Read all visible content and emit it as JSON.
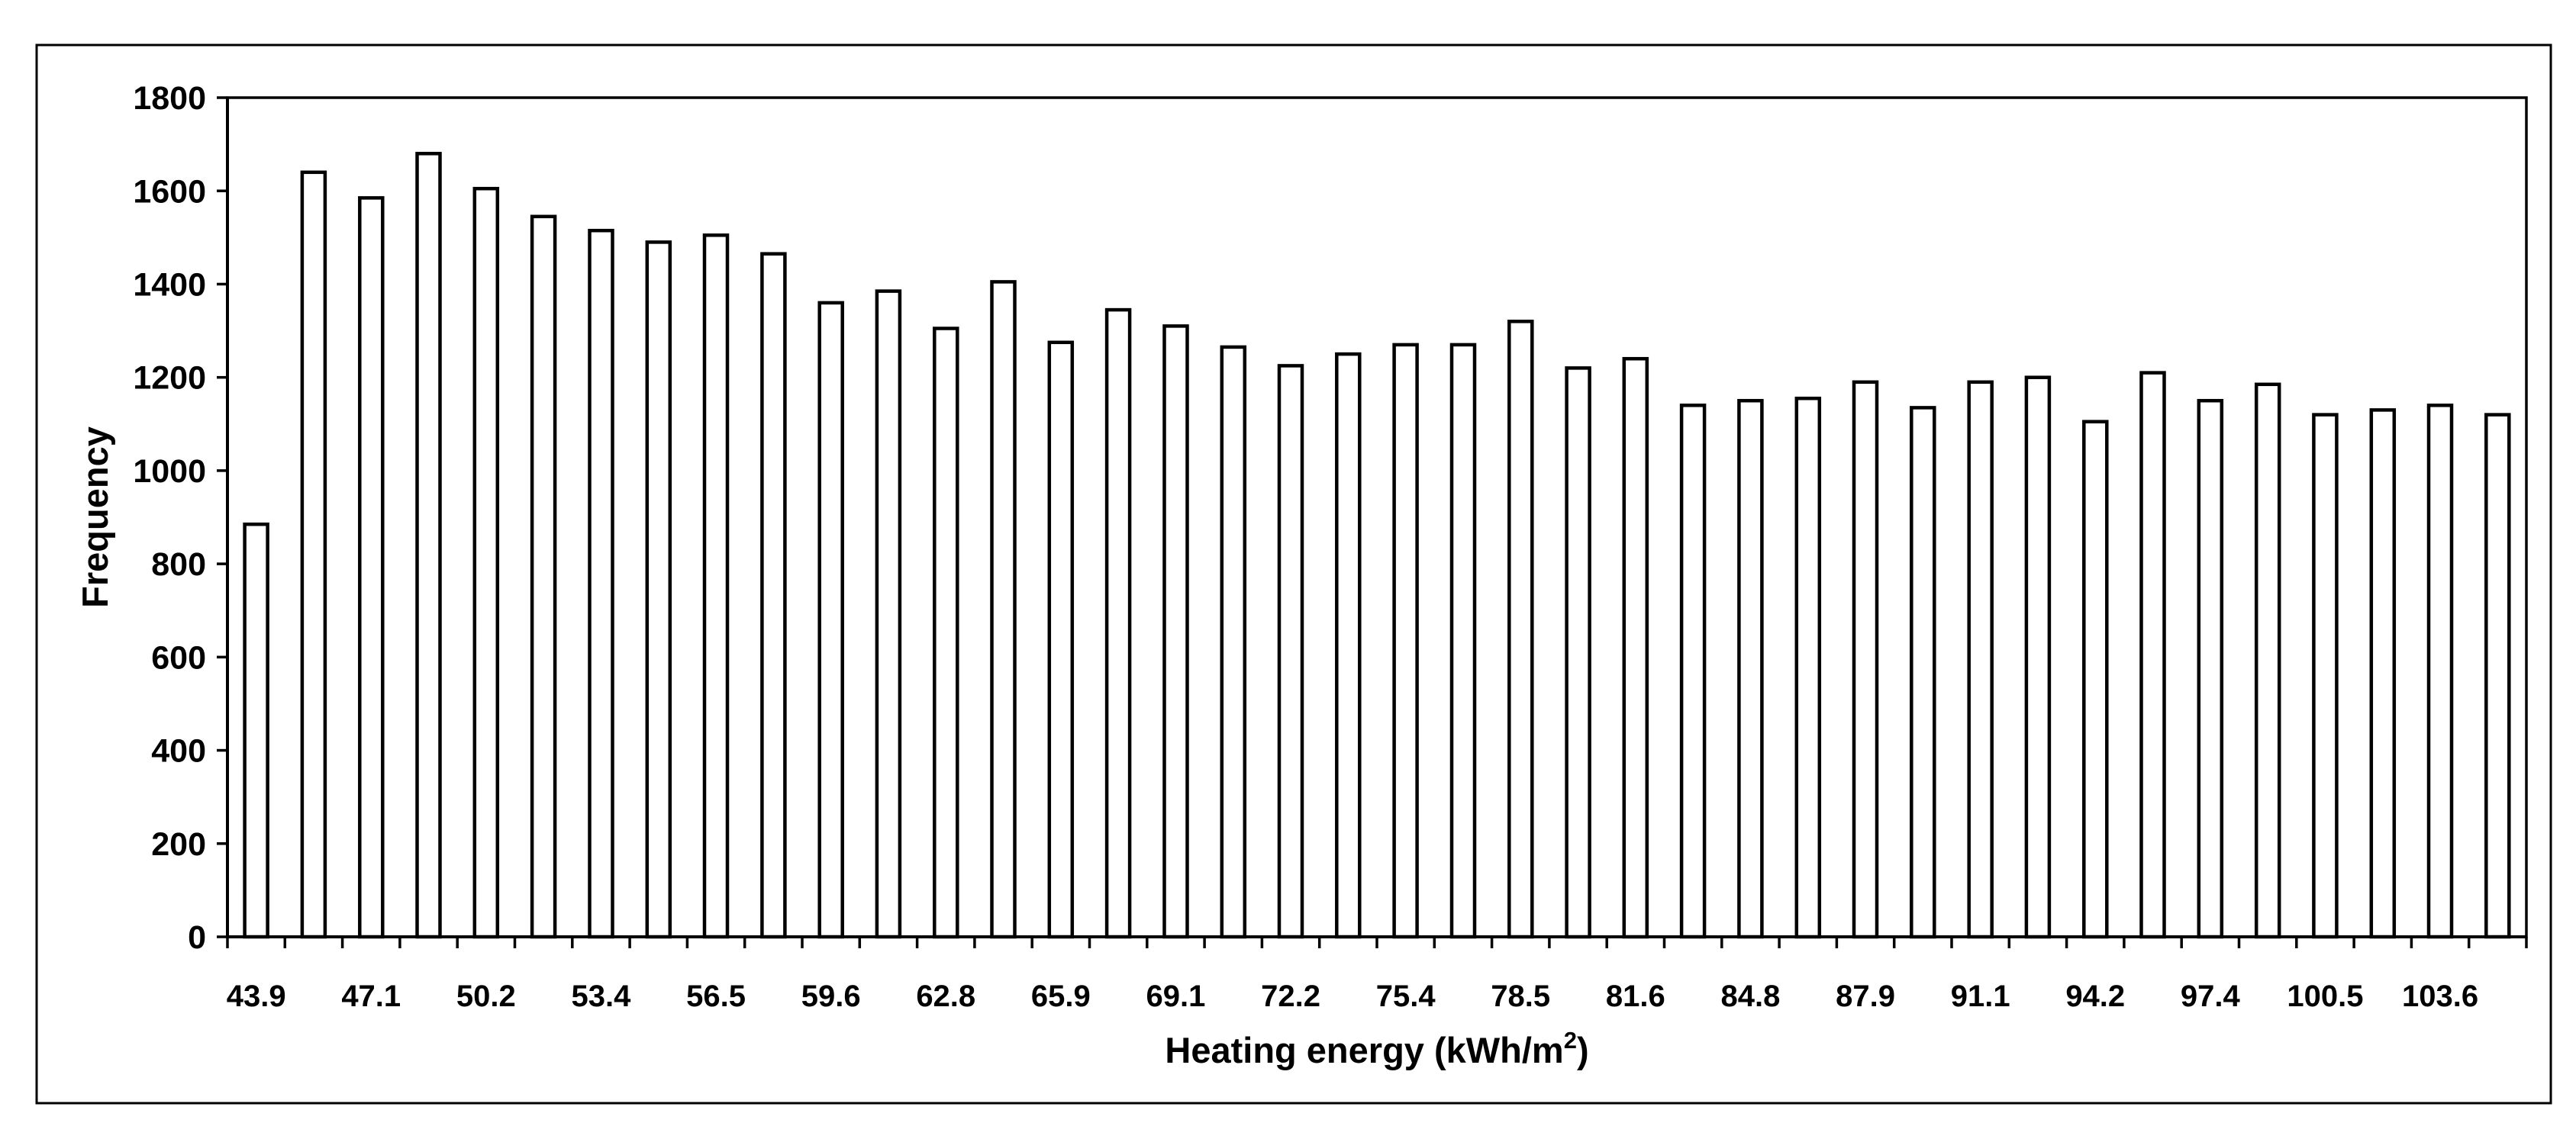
{
  "colors": {
    "background": "#ffffff",
    "foreground": "#000000",
    "bar_fill": "#ffffff",
    "bar_stroke": "#000000",
    "border": "#000000"
  },
  "chart_data": {
    "type": "bar",
    "subtype": "histogram",
    "title": "",
    "xlabel_main": "Heating energy (kWh/m",
    "xlabel_sup": "2",
    "xlabel_close": ")",
    "ylabel": "Frequency",
    "ylim": [
      0,
      1800
    ],
    "ytick_step": 200,
    "yticks": [
      0,
      200,
      400,
      600,
      800,
      1000,
      1200,
      1400,
      1600,
      1800
    ],
    "x_tick_labels": [
      "43.9",
      "47.1",
      "50.2",
      "53.4",
      "56.5",
      "59.6",
      "62.8",
      "65.9",
      "69.1",
      "72.2",
      "75.4",
      "78.5",
      "81.6",
      "84.8",
      "87.9",
      "91.1",
      "94.2",
      "97.4",
      "100.5",
      "103.6"
    ],
    "categories": [
      "43.9",
      "",
      "47.1",
      "",
      "50.2",
      "",
      "53.4",
      "",
      "56.5",
      "",
      "59.6",
      "",
      "62.8",
      "",
      "65.9",
      "",
      "69.1",
      "",
      "72.2",
      "",
      "75.4",
      "",
      "78.5",
      "",
      "81.6",
      "",
      "84.8",
      "",
      "87.9",
      "",
      "91.1",
      "",
      "94.2",
      "",
      "97.4",
      "",
      "100.5",
      "",
      "103.6",
      ""
    ],
    "values": [
      885,
      1640,
      1585,
      1680,
      1605,
      1545,
      1515,
      1490,
      1505,
      1465,
      1360,
      1385,
      1305,
      1405,
      1275,
      1345,
      1310,
      1265,
      1225,
      1250,
      1270,
      1270,
      1320,
      1220,
      1240,
      1140,
      1150,
      1155,
      1190,
      1135,
      1190,
      1200,
      1105,
      1210,
      1150,
      1185,
      1120,
      1130,
      1140,
      1120
    ],
    "grid": false,
    "legend_position": "none",
    "bar_outline_only": true
  }
}
